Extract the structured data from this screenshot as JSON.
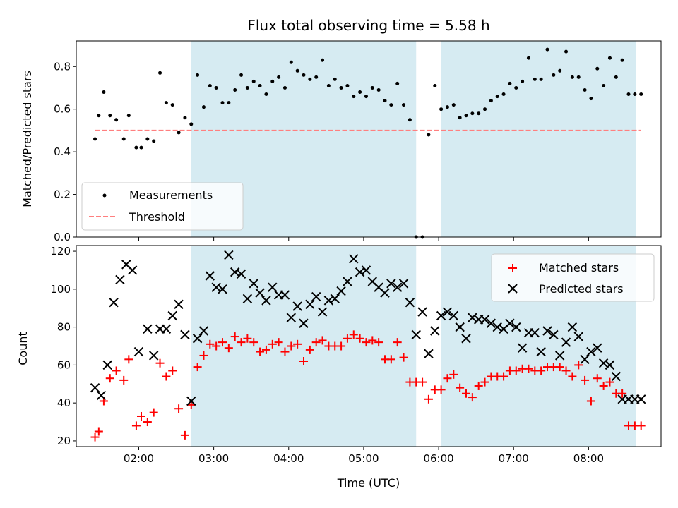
{
  "chart_data": [
    {
      "type": "scatter",
      "title": "Flux total observing time = 5.58 h",
      "xlabel": "",
      "ylabel": "Matched/Predicted stars",
      "ylim": [
        0,
        0.92
      ],
      "yticks": [
        "0.0",
        "0.2",
        "0.4",
        "0.6",
        "0.8"
      ],
      "xticks": [
        "02:00",
        "03:00",
        "04:00",
        "05:00",
        "06:00",
        "07:00",
        "08:00"
      ],
      "xlim": [
        "01:10",
        "08:58"
      ],
      "shaded_regions": [
        [
          "02:42",
          "05:42"
        ],
        [
          "06:02",
          "08:38"
        ]
      ],
      "threshold": 0.5,
      "legend_position": "lower-left",
      "legend": [
        "Measurements",
        "Threshold"
      ],
      "series": [
        {
          "name": "Measurements",
          "color": "#000000",
          "x": [
            "01:25",
            "01:28",
            "01:32",
            "01:37",
            "01:42",
            "01:48",
            "01:52",
            "01:58",
            "02:02",
            "02:07",
            "02:12",
            "02:17",
            "02:22",
            "02:27",
            "02:32",
            "02:37",
            "02:42",
            "02:47",
            "02:52",
            "02:57",
            "03:02",
            "03:07",
            "03:12",
            "03:17",
            "03:22",
            "03:27",
            "03:32",
            "03:37",
            "03:42",
            "03:47",
            "03:52",
            "03:57",
            "04:02",
            "04:07",
            "04:12",
            "04:17",
            "04:22",
            "04:27",
            "04:32",
            "04:37",
            "04:42",
            "04:47",
            "04:52",
            "04:57",
            "05:02",
            "05:07",
            "05:12",
            "05:17",
            "05:22",
            "05:27",
            "05:32",
            "05:37",
            "05:42",
            "05:47",
            "05:52",
            "05:57",
            "06:02",
            "06:07",
            "06:12",
            "06:17",
            "06:22",
            "06:27",
            "06:32",
            "06:37",
            "06:42",
            "06:47",
            "06:52",
            "06:57",
            "07:02",
            "07:07",
            "07:12",
            "07:17",
            "07:22",
            "07:27",
            "07:32",
            "07:37",
            "07:42",
            "07:47",
            "07:52",
            "07:57",
            "08:02",
            "08:07",
            "08:12",
            "08:17",
            "08:22",
            "08:27",
            "08:32",
            "08:37",
            "08:42"
          ],
          "y": [
            0.46,
            0.57,
            0.68,
            0.57,
            0.55,
            0.46,
            0.57,
            0.42,
            0.42,
            0.46,
            0.45,
            0.77,
            0.63,
            0.62,
            0.49,
            0.56,
            0.53,
            0.76,
            0.61,
            0.71,
            0.7,
            0.63,
            0.63,
            0.69,
            0.76,
            0.7,
            0.73,
            0.71,
            0.67,
            0.73,
            0.75,
            0.7,
            0.82,
            0.78,
            0.76,
            0.74,
            0.75,
            0.83,
            0.71,
            0.74,
            0.7,
            0.71,
            0.66,
            0.68,
            0.66,
            0.7,
            0.69,
            0.64,
            0.62,
            0.72,
            0.62,
            0.55,
            0.0,
            0.0,
            0.48,
            0.71,
            0.6,
            0.61,
            0.62,
            0.56,
            0.57,
            0.58,
            0.58,
            0.6,
            0.64,
            0.66,
            0.67,
            0.72,
            0.7,
            0.73,
            0.84,
            0.74,
            0.74,
            0.88,
            0.76,
            0.78,
            0.87,
            0.75,
            0.75,
            0.69,
            0.65,
            0.79,
            0.71,
            0.84,
            0.75,
            0.83,
            0.67,
            0.67,
            0.67
          ]
        },
        {
          "name": "Threshold",
          "color": "#ff7f7f",
          "x": [
            "01:25",
            "08:42"
          ],
          "y": [
            0.5,
            0.5
          ]
        }
      ]
    },
    {
      "type": "scatter",
      "title": "",
      "xlabel": "Time (UTC)",
      "ylabel": "Count",
      "ylim": [
        17,
        123
      ],
      "yticks": [
        "20",
        "40",
        "60",
        "80",
        "100",
        "120"
      ],
      "xticks": [
        "02:00",
        "03:00",
        "04:00",
        "05:00",
        "06:00",
        "07:00",
        "08:00"
      ],
      "xlim": [
        "01:10",
        "08:58"
      ],
      "shaded_regions": [
        [
          "02:42",
          "05:42"
        ],
        [
          "06:02",
          "08:38"
        ]
      ],
      "legend_position": "top-right",
      "legend": [
        "Matched stars",
        "Predicted stars"
      ],
      "series": [
        {
          "name": "Matched stars",
          "color": "#ff0000",
          "marker": "plus",
          "x": [
            "01:25",
            "01:28",
            "01:32",
            "01:37",
            "01:42",
            "01:48",
            "01:52",
            "01:58",
            "02:02",
            "02:07",
            "02:12",
            "02:17",
            "02:22",
            "02:27",
            "02:32",
            "02:37",
            "02:42",
            "02:47",
            "02:52",
            "02:57",
            "03:02",
            "03:07",
            "03:12",
            "03:17",
            "03:22",
            "03:27",
            "03:32",
            "03:37",
            "03:42",
            "03:47",
            "03:52",
            "03:57",
            "04:02",
            "04:07",
            "04:12",
            "04:17",
            "04:22",
            "04:27",
            "04:32",
            "04:37",
            "04:42",
            "04:47",
            "04:52",
            "04:57",
            "05:02",
            "05:07",
            "05:12",
            "05:17",
            "05:22",
            "05:27",
            "05:32",
            "05:37",
            "05:42",
            "05:47",
            "05:52",
            "05:57",
            "06:02",
            "06:07",
            "06:12",
            "06:17",
            "06:22",
            "06:27",
            "06:32",
            "06:37",
            "06:42",
            "06:47",
            "06:52",
            "06:57",
            "07:02",
            "07:07",
            "07:12",
            "07:17",
            "07:22",
            "07:27",
            "07:32",
            "07:37",
            "07:42",
            "07:47",
            "07:52",
            "07:57",
            "08:02",
            "08:07",
            "08:12",
            "08:17",
            "08:22",
            "08:27",
            "08:32",
            "08:37",
            "08:42"
          ],
          "y": [
            22,
            25,
            41,
            53,
            57,
            52,
            63,
            28,
            33,
            30,
            35,
            61,
            54,
            57,
            37,
            23,
            39,
            59,
            65,
            71,
            70,
            72,
            69,
            75,
            72,
            74,
            72,
            67,
            68,
            71,
            72,
            67,
            70,
            71,
            62,
            68,
            72,
            73,
            70,
            70,
            70,
            74,
            76,
            74,
            72,
            73,
            72,
            63,
            63,
            72,
            64,
            51,
            51,
            51,
            42,
            47,
            47,
            53,
            55,
            48,
            45,
            43,
            49,
            51,
            54,
            54,
            54,
            57,
            57,
            58,
            58,
            57,
            57,
            59,
            59,
            59,
            57,
            54,
            60,
            52,
            41,
            53,
            49,
            51,
            45,
            45,
            28,
            28,
            28
          ]
        },
        {
          "name": "Predicted stars",
          "color": "#000000",
          "marker": "x",
          "x": [
            "01:25",
            "01:30",
            "01:35",
            "01:40",
            "01:45",
            "01:50",
            "01:55",
            "02:00",
            "02:07",
            "02:12",
            "02:17",
            "02:22",
            "02:27",
            "02:32",
            "02:37",
            "02:42",
            "02:47",
            "02:52",
            "02:57",
            "03:02",
            "03:07",
            "03:12",
            "03:17",
            "03:22",
            "03:27",
            "03:32",
            "03:37",
            "03:42",
            "03:47",
            "03:52",
            "03:57",
            "04:02",
            "04:07",
            "04:12",
            "04:17",
            "04:22",
            "04:27",
            "04:32",
            "04:37",
            "04:42",
            "04:47",
            "04:52",
            "04:57",
            "05:02",
            "05:07",
            "05:12",
            "05:17",
            "05:22",
            "05:27",
            "05:32",
            "05:37",
            "05:42",
            "05:47",
            "05:52",
            "05:57",
            "06:02",
            "06:07",
            "06:12",
            "06:17",
            "06:22",
            "06:27",
            "06:32",
            "06:37",
            "06:42",
            "06:47",
            "06:52",
            "06:57",
            "07:02",
            "07:07",
            "07:12",
            "07:17",
            "07:22",
            "07:27",
            "07:32",
            "07:37",
            "07:42",
            "07:47",
            "07:52",
            "07:57",
            "08:02",
            "08:07",
            "08:12",
            "08:17",
            "08:22",
            "08:27",
            "08:32",
            "08:37",
            "08:42"
          ],
          "y": [
            48,
            44,
            60,
            93,
            105,
            113,
            110,
            67,
            79,
            65,
            79,
            79,
            86,
            92,
            76,
            41,
            74,
            78,
            107,
            101,
            100,
            118,
            109,
            108,
            95,
            103,
            98,
            94,
            101,
            97,
            97,
            85,
            91,
            82,
            92,
            96,
            88,
            94,
            95,
            99,
            104,
            116,
            109,
            110,
            104,
            101,
            98,
            103,
            101,
            103,
            93,
            76,
            88,
            66,
            78,
            86,
            88,
            86,
            80,
            74,
            85,
            84,
            84,
            82,
            80,
            79,
            82,
            80,
            69,
            77,
            77,
            67,
            78,
            76,
            65,
            72,
            80,
            75,
            63,
            67,
            69,
            61,
            60,
            54,
            42,
            42,
            42,
            42
          ]
        }
      ]
    }
  ]
}
